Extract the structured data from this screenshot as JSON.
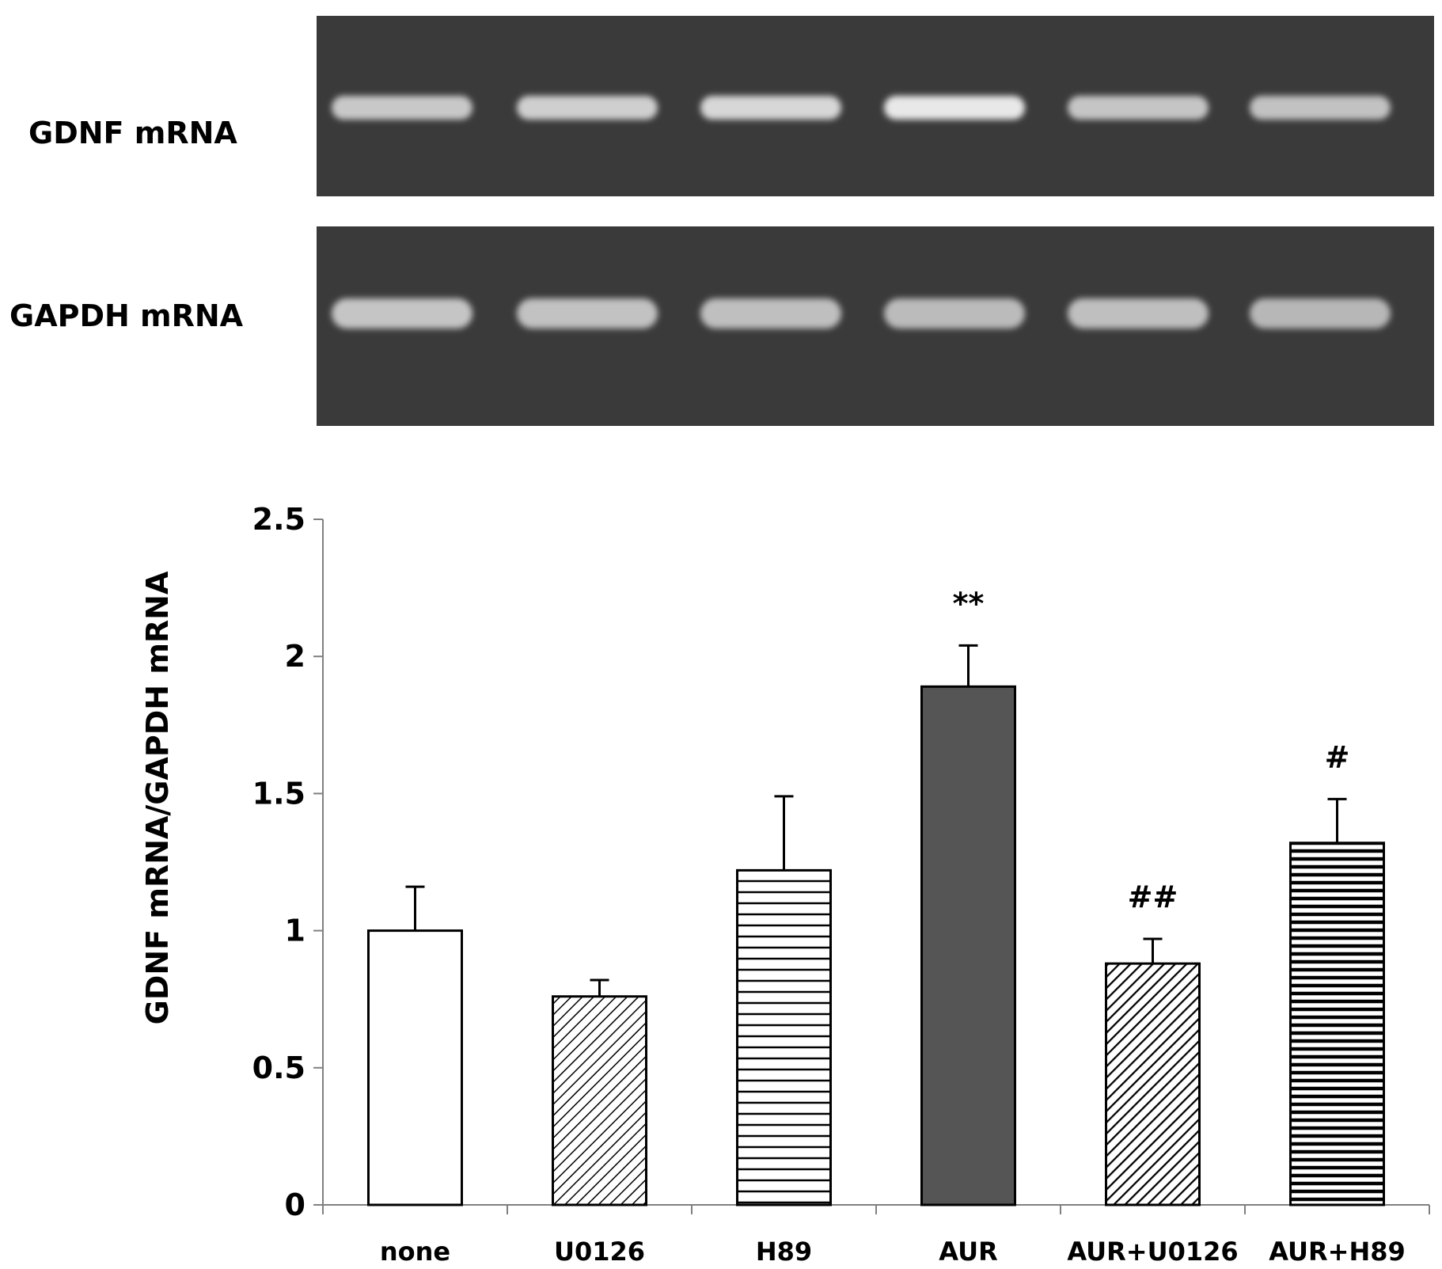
{
  "blots": {
    "gdnf_label": "GDNF mRNA",
    "gapdh_label": "GAPDH mRNA",
    "gel_color": "#3a3a3a",
    "band_color": "#e8e8e8",
    "gdnf_band_intensity": [
      0.82,
      0.86,
      0.9,
      1.0,
      0.8,
      0.78
    ],
    "gapdh_band_intensity": [
      0.8,
      0.78,
      0.76,
      0.74,
      0.76,
      0.72
    ]
  },
  "chart_data": {
    "type": "bar",
    "categories": [
      "none",
      "U0126",
      "H89",
      "AUR",
      "AUR+U0126",
      "AUR+H89"
    ],
    "values": [
      1.0,
      0.76,
      1.22,
      1.89,
      0.88,
      1.32
    ],
    "errors": [
      0.16,
      0.06,
      0.27,
      0.15,
      0.09,
      0.16
    ],
    "annotations": [
      "",
      "",
      "",
      "**",
      "##",
      "#"
    ],
    "patterns": [
      "white",
      "diagonal-thin",
      "horizontal-wide",
      "dark-fill",
      "diagonal-thick",
      "horizontal-dense"
    ],
    "dark_fill_color": "#555555",
    "xlabel": "",
    "ylabel": "GDNF mRNA/GAPDH mRNA",
    "ylim": [
      0,
      2.5
    ],
    "yticks": [
      "0",
      "0.5",
      "1",
      "1.5",
      "2",
      "2.5"
    ],
    "grid": false,
    "legend": "none"
  }
}
